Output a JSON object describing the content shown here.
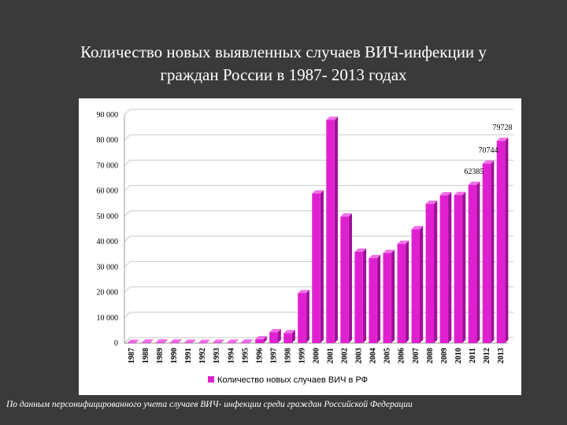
{
  "title": {
    "line1": "Количество новых выявленных случаев ВИЧ-инфекции у",
    "line2": "граждан России в 1987- 2013 годах"
  },
  "footnote": "По данным персонифицированного учета случаев ВИЧ- инфекции среди граждан Российской Федерации",
  "colors": {
    "bar_front": "#e020d0",
    "bar_top": "#f070e8",
    "bar_side": "#a0109a",
    "gridline": "#c8c8c8"
  },
  "chart_data": {
    "type": "bar",
    "categories": [
      "1987",
      "1988",
      "1989",
      "1990",
      "1991",
      "1992",
      "1993",
      "1994",
      "1995",
      "1996",
      "1997",
      "1998",
      "1999",
      "2000",
      "2001",
      "2002",
      "2003",
      "2004",
      "2005",
      "2006",
      "2007",
      "2008",
      "2009",
      "2010",
      "2011",
      "2012",
      "2013"
    ],
    "series": [
      {
        "name": "Количество новых случаев ВИЧ в РФ",
        "values": [
          100,
          200,
          250,
          200,
          150,
          100,
          150,
          150,
          200,
          1500,
          4300,
          3900,
          19700,
          59000,
          88000,
          49900,
          36000,
          33500,
          35500,
          39100,
          44900,
          54900,
          58300,
          58400,
          62385,
          70744,
          79728
        ]
      }
    ],
    "data_labels": [
      {
        "category": "2011",
        "text": "62385"
      },
      {
        "category": "2012",
        "text": "70744"
      },
      {
        "category": "2013",
        "text": "79728"
      }
    ],
    "y_ticks": [
      0,
      10000,
      20000,
      30000,
      40000,
      50000,
      60000,
      70000,
      80000,
      90000
    ],
    "y_tick_labels": [
      "0",
      "10 000",
      "20 000",
      "30 000",
      "40 000",
      "50 000",
      "60 000",
      "70 000",
      "80 000",
      "90 000"
    ],
    "ylim": [
      0,
      90000
    ],
    "grid": true,
    "legend_position": "bottom",
    "xlabel": "",
    "ylabel": ""
  }
}
